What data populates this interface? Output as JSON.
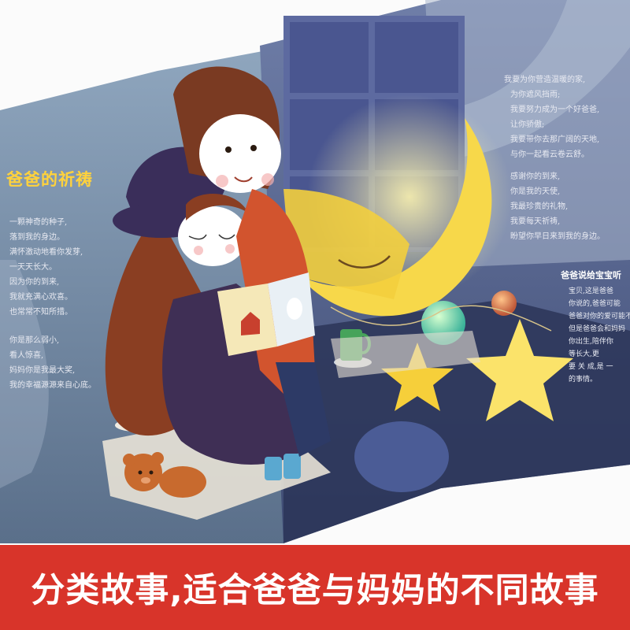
{
  "banner": {
    "text": "分类故事,适合爸爸与妈妈的不同故事"
  },
  "left_page": {
    "title": "爸爸的祈祷",
    "lines": [
      "一颗神奇的种子,",
      "落到我的身边。",
      "满怀激动地看你发芽,",
      "一天天长大。",
      "因为你的到来,",
      "我就充满心欢喜。",
      "也常常不知所措。",
      "你是那么弱小,",
      "看人惊喜,",
      "妈妈你是我最大奖,",
      "我的幸福源源来自心底。"
    ]
  },
  "right_page": {
    "lines": [
      "我要为你营造温暖的家,",
      "为你遮风挡雨;",
      "我要努力成为一个好爸爸,",
      "让你骄傲;",
      "我要带你去那广阔的天地,",
      "与你一起看云卷云舒。",
      "",
      "感谢你的到来,",
      "你是我的天使,",
      "我最珍贵的礼物,",
      "我要每天祈祷,",
      "盼望你早日来到我的身边。"
    ],
    "note_title": "爸爸说给宝宝听",
    "note_lines": [
      "宝贝,这是爸爸",
      "你说的,爸爸可能",
      "爸爸对你的爱可能不",
      "但是爸爸会和妈妈",
      "你出生,陪伴你",
      "等长大,更",
      "要 关 成,是 一",
      "的事情。"
    ]
  }
}
